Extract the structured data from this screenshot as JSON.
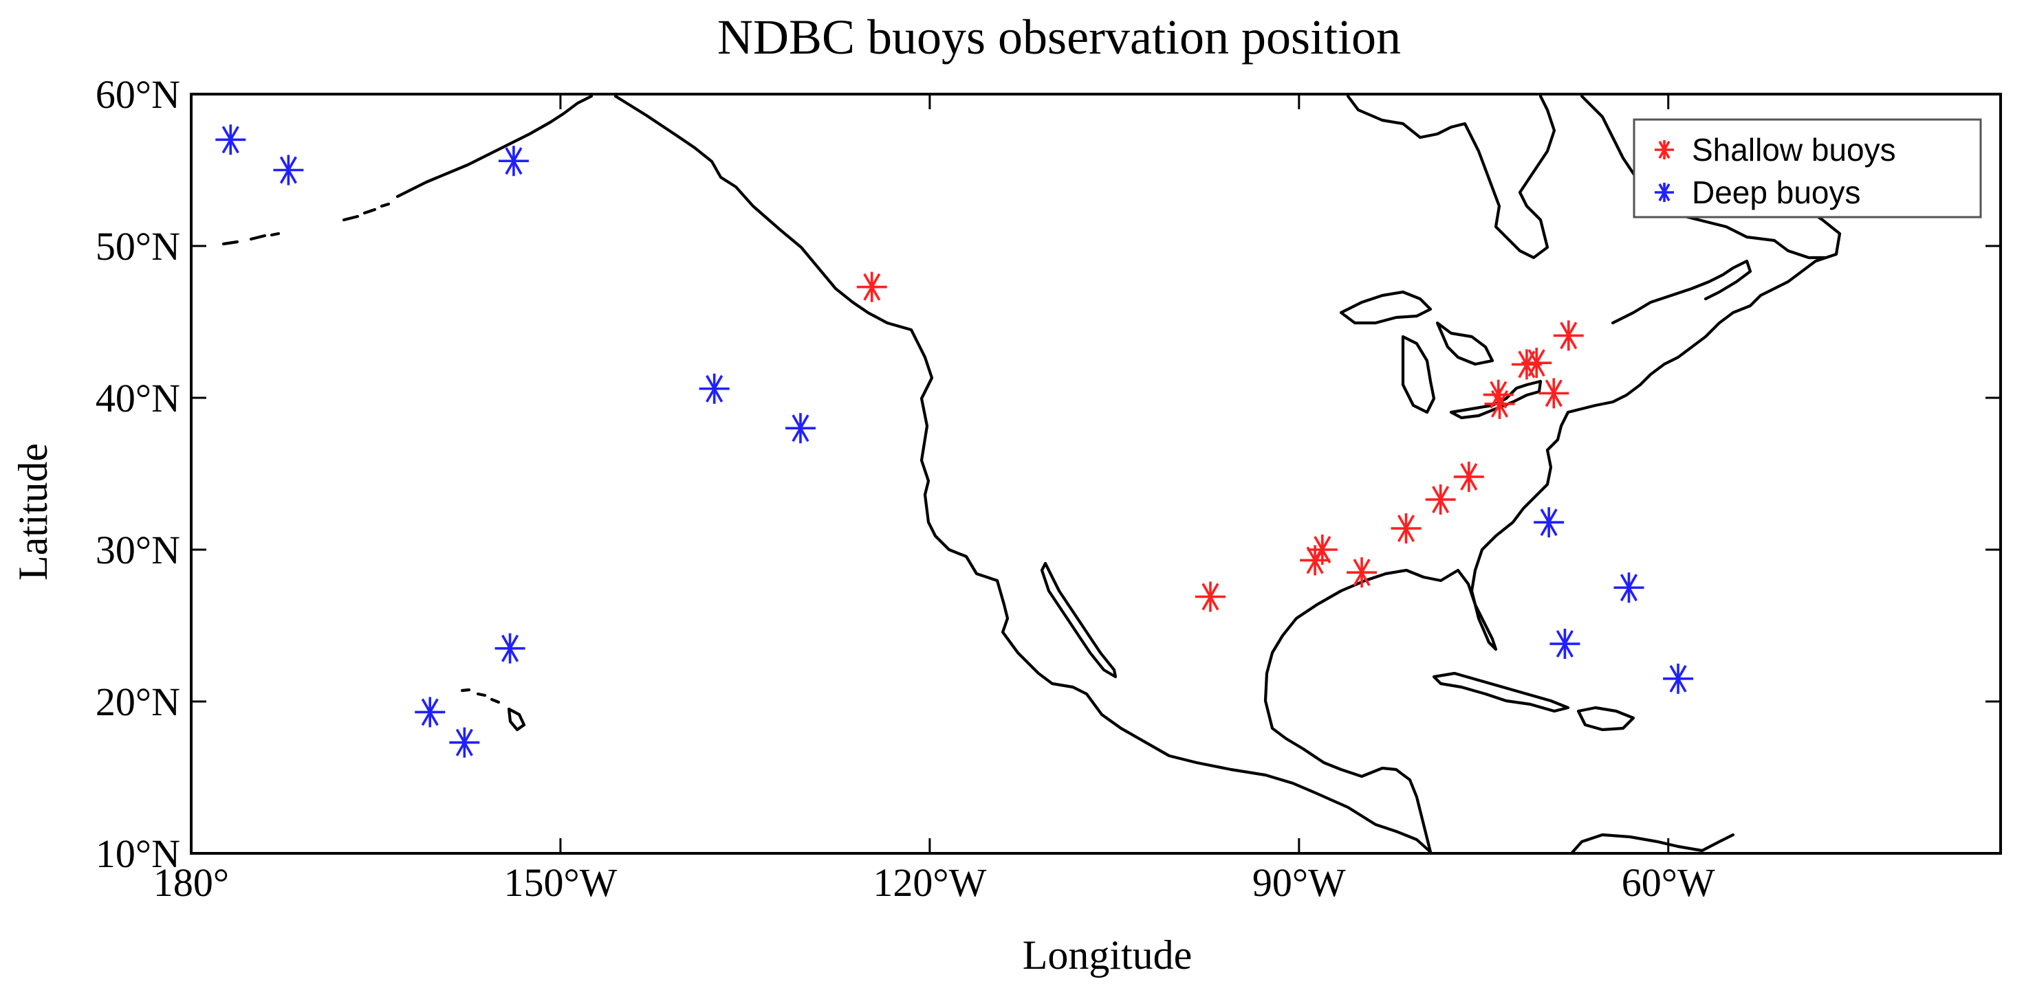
{
  "chart_data": {
    "type": "scatter",
    "title": "NDBC buoys observation position",
    "xlabel": "Longitude",
    "ylabel": "Latitude",
    "xlim": [
      -180,
      -33
    ],
    "ylim": [
      10,
      60
    ],
    "x_ticks": [
      {
        "value": -180,
        "label": "180°"
      },
      {
        "value": -150,
        "label": "150°W"
      },
      {
        "value": -120,
        "label": "120°W"
      },
      {
        "value": -90,
        "label": "90°W"
      },
      {
        "value": -60,
        "label": "60°W"
      }
    ],
    "y_ticks": [
      {
        "value": 10,
        "label": "10°N"
      },
      {
        "value": 20,
        "label": "20°N"
      },
      {
        "value": 30,
        "label": "30°N"
      },
      {
        "value": 40,
        "label": "40°N"
      },
      {
        "value": 50,
        "label": "50°N"
      },
      {
        "value": 60,
        "label": "60°N"
      }
    ],
    "grid": false,
    "legend_position": "top-right",
    "series": [
      {
        "name": "Shallow buoys",
        "color": "#ff2020",
        "marker": "asterisk",
        "points": [
          [
            -124.7,
            47.3
          ],
          [
            -97.2,
            26.9
          ],
          [
            -88.7,
            29.3
          ],
          [
            -88.1,
            30.0
          ],
          [
            -84.9,
            28.5
          ],
          [
            -81.3,
            31.4
          ],
          [
            -78.5,
            33.3
          ],
          [
            -76.2,
            34.8
          ],
          [
            -73.7,
            39.6
          ],
          [
            -73.8,
            40.2
          ],
          [
            -71.5,
            42.2
          ],
          [
            -70.7,
            42.3
          ],
          [
            -69.3,
            40.3
          ],
          [
            -68.1,
            44.1
          ]
        ]
      },
      {
        "name": "Deep buoys",
        "color": "#2020ff",
        "marker": "asterisk",
        "points": [
          [
            -176.8,
            57.0
          ],
          [
            -172.1,
            55.0
          ],
          [
            -153.8,
            55.6
          ],
          [
            -160.6,
            19.3
          ],
          [
            -157.8,
            17.3
          ],
          [
            -154.1,
            23.5
          ],
          [
            -137.5,
            40.6
          ],
          [
            -130.5,
            38.0
          ],
          [
            -69.7,
            31.8
          ],
          [
            -68.4,
            23.8
          ],
          [
            -63.2,
            27.5
          ],
          [
            -59.2,
            21.5
          ]
        ]
      }
    ]
  }
}
